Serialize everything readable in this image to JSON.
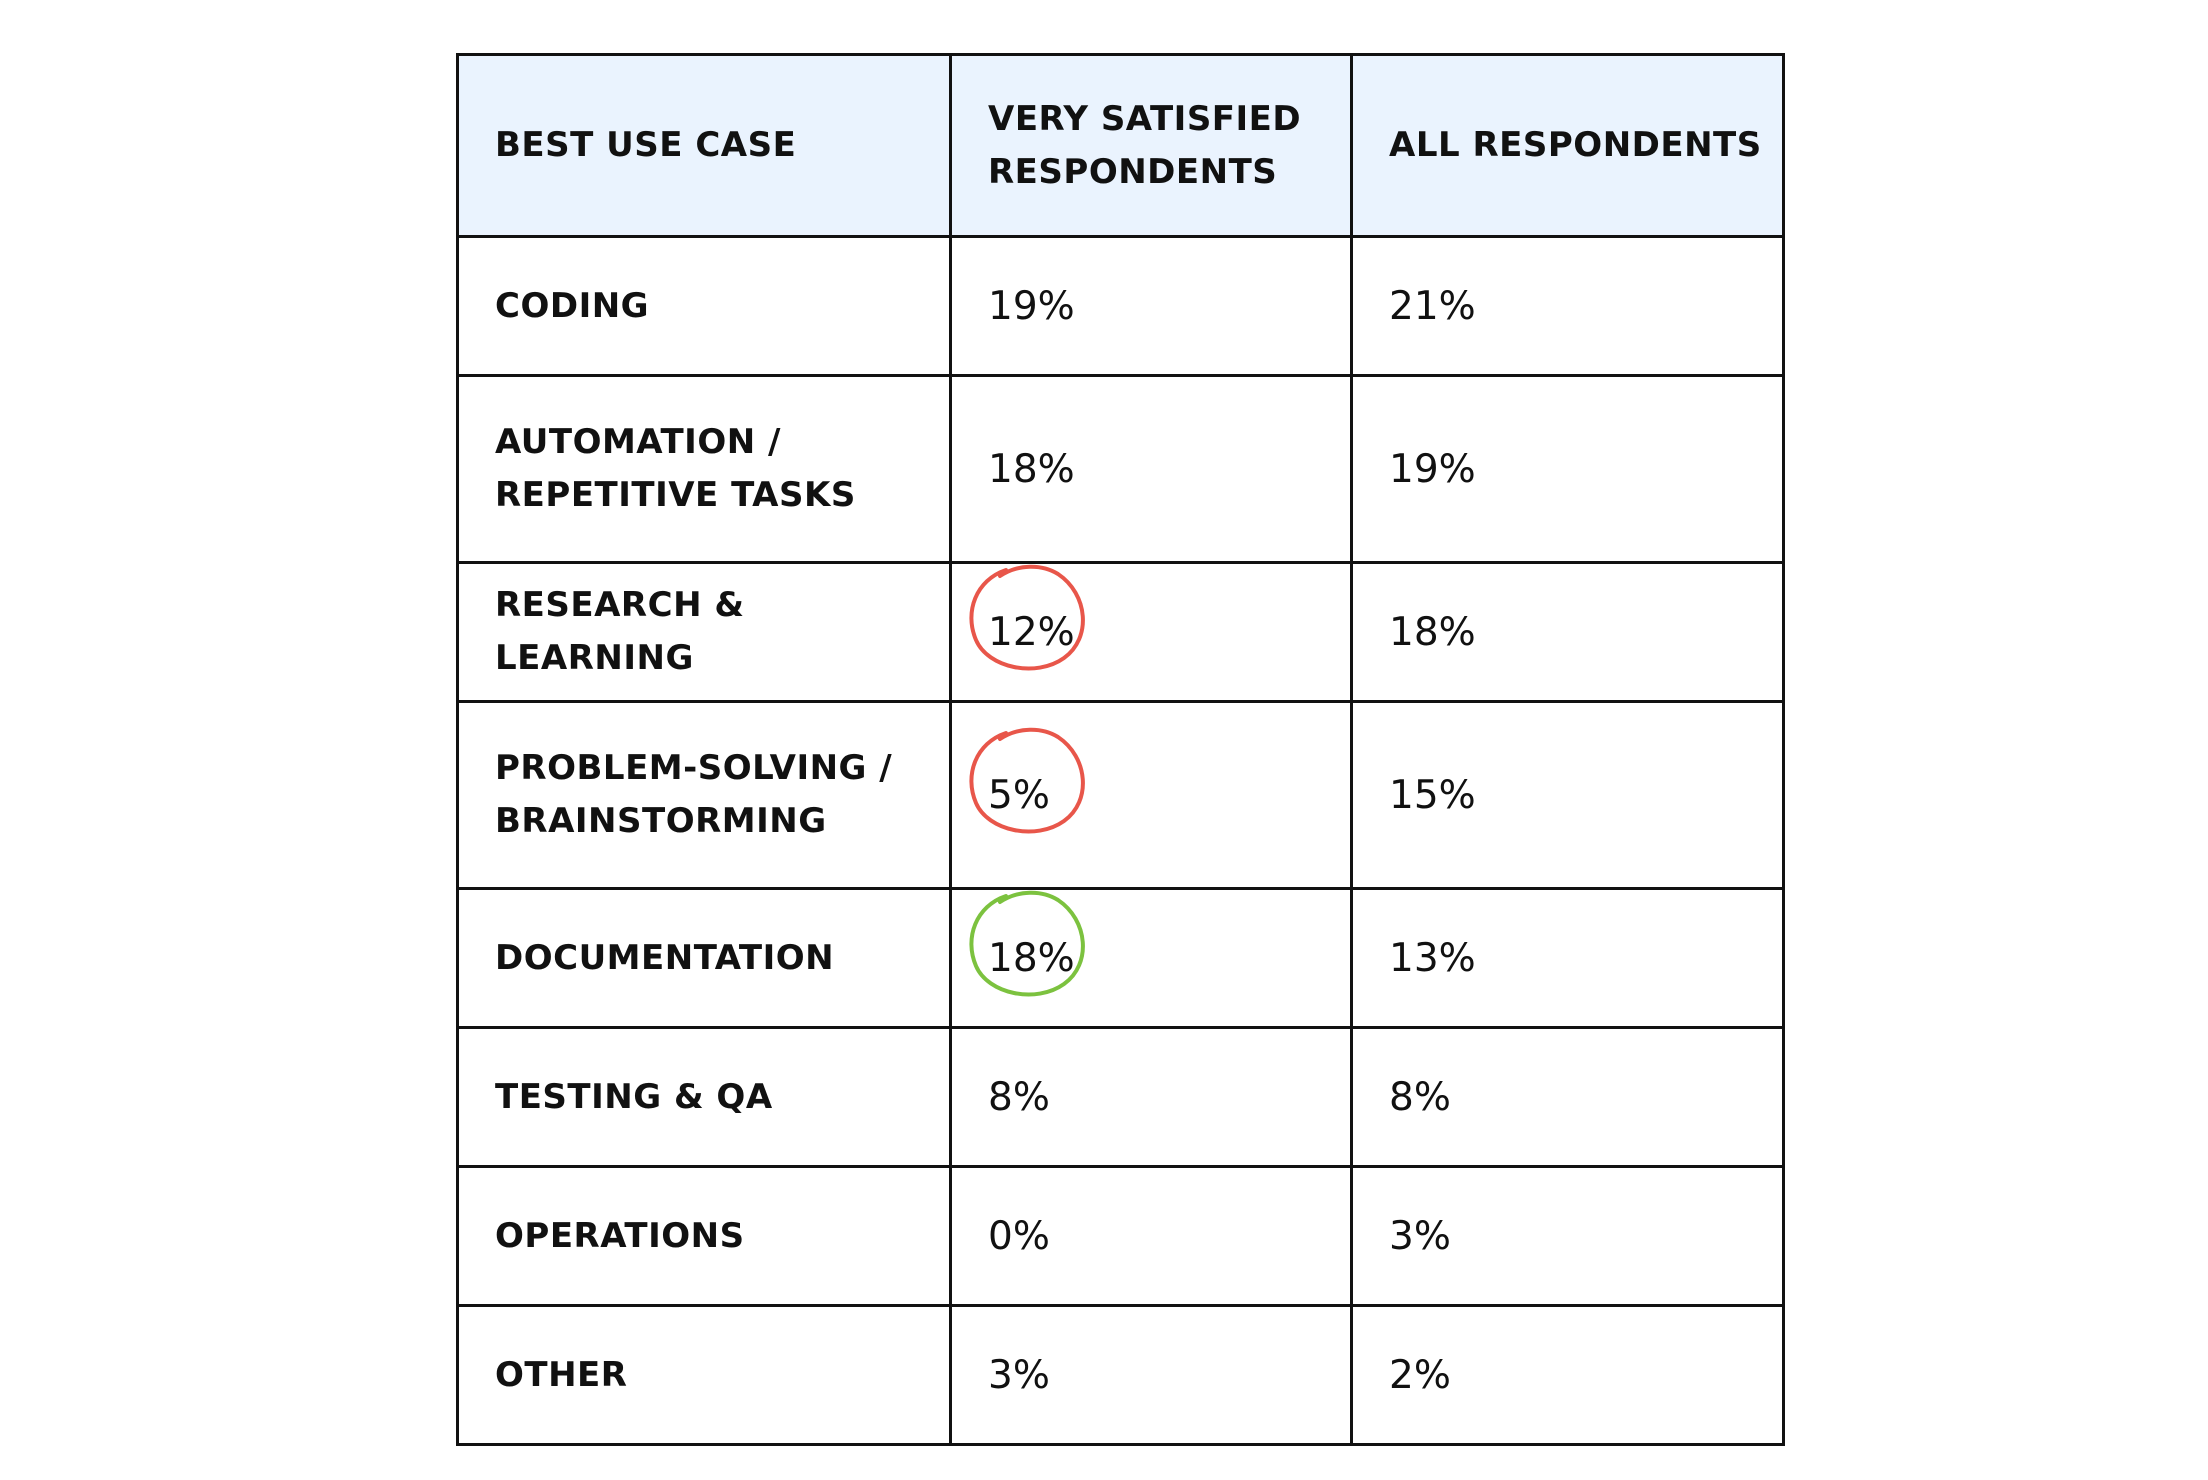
{
  "table": {
    "headers": [
      "BEST USE CASE",
      "VERY SATISFIED RESPONDENTS",
      "ALL RESPONDENTS"
    ],
    "header_lines": {
      "col1": [
        "BEST USE CASE"
      ],
      "col2": [
        "VERY SATISFIED",
        "RESPONDENTS"
      ],
      "col3": [
        "ALL RESPONDENTS"
      ]
    },
    "header_background": "#eaf3fe",
    "rows": [
      {
        "use_case_lines": [
          "CODING"
        ],
        "very_satisfied": "19%",
        "all": "21%",
        "highlight": null
      },
      {
        "use_case_lines": [
          "AUTOMATION /",
          "REPETITIVE TASKS"
        ],
        "very_satisfied": "18%",
        "all": "19%",
        "highlight": null
      },
      {
        "use_case_lines": [
          "RESEARCH & LEARNING"
        ],
        "very_satisfied": "12%",
        "all": "18%",
        "highlight": "red"
      },
      {
        "use_case_lines": [
          "PROBLEM-SOLVING /",
          "BRAINSTORMING"
        ],
        "very_satisfied": "5%",
        "all": "15%",
        "highlight": "red"
      },
      {
        "use_case_lines": [
          "DOCUMENTATION"
        ],
        "very_satisfied": "18%",
        "all": "13%",
        "highlight": "green"
      },
      {
        "use_case_lines": [
          "TESTING & QA"
        ],
        "very_satisfied": "8%",
        "all": "8%",
        "highlight": null
      },
      {
        "use_case_lines": [
          "OPERATIONS"
        ],
        "very_satisfied": "0%",
        "all": "3%",
        "highlight": null
      },
      {
        "use_case_lines": [
          "OTHER"
        ],
        "very_satisfied": "3%",
        "all": "2%",
        "highlight": null
      }
    ]
  },
  "highlight_colors": {
    "red": "#e8564a",
    "green": "#7cc23f"
  }
}
